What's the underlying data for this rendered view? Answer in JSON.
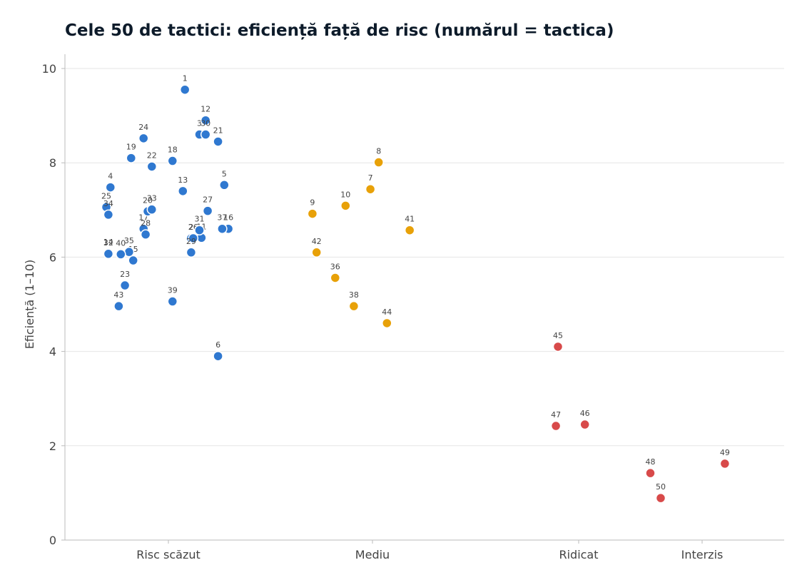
{
  "chart_data": {
    "type": "scatter",
    "title": "Cele 50 de tactici: eficiență față de risc (numărul = tactica)",
    "ylabel": "Eficiență (1–10)",
    "xlabel": "",
    "ylim": [
      0,
      10
    ],
    "yticks": [
      0,
      2,
      4,
      6,
      8,
      10
    ],
    "grid": "horizontal",
    "categories": [
      "Risc scăzut",
      "Mediu",
      "Ridicat",
      "Interzis"
    ],
    "colors": {
      "Risc scăzut": "#2f78d0",
      "Mediu": "#e8a108",
      "Ridicat": "#d84a4a",
      "Interzis": "#d84a4a"
    },
    "points": [
      {
        "id": "1",
        "category": "Risc scăzut",
        "offset": 0.08,
        "y": 9.55
      },
      {
        "id": "2",
        "category": "Risc scăzut",
        "offset": 0.11,
        "y": 6.4
      },
      {
        "id": "3",
        "category": "Risc scăzut",
        "offset": 0.15,
        "y": 8.6
      },
      {
        "id": "4",
        "category": "Risc scăzut",
        "offset": -0.28,
        "y": 7.48
      },
      {
        "id": "5",
        "category": "Risc scăzut",
        "offset": 0.27,
        "y": 7.53
      },
      {
        "id": "6",
        "category": "Risc scăzut",
        "offset": 0.24,
        "y": 3.9
      },
      {
        "id": "7",
        "category": "Mediu",
        "offset": -0.01,
        "y": 7.44
      },
      {
        "id": "8",
        "category": "Mediu",
        "offset": 0.03,
        "y": 8.01
      },
      {
        "id": "9",
        "category": "Mediu",
        "offset": -0.29,
        "y": 6.92
      },
      {
        "id": "10",
        "category": "Mediu",
        "offset": -0.13,
        "y": 7.09
      },
      {
        "id": "11",
        "category": "Risc scăzut",
        "offset": 0.16,
        "y": 6.41
      },
      {
        "id": "12",
        "category": "Risc scăzut",
        "offset": 0.18,
        "y": 8.9
      },
      {
        "id": "13",
        "category": "Risc scăzut",
        "offset": 0.07,
        "y": 7.4
      },
      {
        "id": "14",
        "category": "Risc scăzut",
        "offset": -0.29,
        "y": 6.08
      },
      {
        "id": "15",
        "category": "Risc scăzut",
        "offset": -0.17,
        "y": 5.93
      },
      {
        "id": "16",
        "category": "Risc scăzut",
        "offset": 0.29,
        "y": 6.6
      },
      {
        "id": "17",
        "category": "Risc scăzut",
        "offset": -0.12,
        "y": 6.6
      },
      {
        "id": "18",
        "category": "Risc scăzut",
        "offset": 0.02,
        "y": 8.04
      },
      {
        "id": "19",
        "category": "Risc scăzut",
        "offset": -0.18,
        "y": 8.1
      },
      {
        "id": "20",
        "category": "Risc scăzut",
        "offset": -0.1,
        "y": 6.97
      },
      {
        "id": "21",
        "category": "Risc scăzut",
        "offset": 0.24,
        "y": 8.45
      },
      {
        "id": "22",
        "category": "Risc scăzut",
        "offset": -0.08,
        "y": 7.92
      },
      {
        "id": "23",
        "category": "Risc scăzut",
        "offset": -0.21,
        "y": 5.4
      },
      {
        "id": "24",
        "category": "Risc scăzut",
        "offset": -0.12,
        "y": 8.52
      },
      {
        "id": "25",
        "category": "Risc scăzut",
        "offset": -0.3,
        "y": 7.06
      },
      {
        "id": "26",
        "category": "Risc scăzut",
        "offset": 0.12,
        "y": 6.4
      },
      {
        "id": "27",
        "category": "Risc scăzut",
        "offset": 0.19,
        "y": 6.98
      },
      {
        "id": "28",
        "category": "Risc scăzut",
        "offset": -0.11,
        "y": 6.48
      },
      {
        "id": "29",
        "category": "Risc scăzut",
        "offset": 0.11,
        "y": 6.1
      },
      {
        "id": "30",
        "category": "Risc scăzut",
        "offset": 0.18,
        "y": 8.6
      },
      {
        "id": "31",
        "category": "Risc scăzut",
        "offset": 0.15,
        "y": 6.57
      },
      {
        "id": "32",
        "category": "Risc scăzut",
        "offset": -0.29,
        "y": 6.07
      },
      {
        "id": "33",
        "category": "Risc scăzut",
        "offset": -0.08,
        "y": 7.01
      },
      {
        "id": "34",
        "category": "Risc scăzut",
        "offset": -0.29,
        "y": 6.9
      },
      {
        "id": "35",
        "category": "Risc scăzut",
        "offset": -0.19,
        "y": 6.11
      },
      {
        "id": "36",
        "category": "Mediu",
        "offset": -0.18,
        "y": 5.56
      },
      {
        "id": "37",
        "category": "Risc scăzut",
        "offset": 0.26,
        "y": 6.6
      },
      {
        "id": "38",
        "category": "Mediu",
        "offset": -0.09,
        "y": 4.96
      },
      {
        "id": "39",
        "category": "Risc scăzut",
        "offset": 0.02,
        "y": 5.06
      },
      {
        "id": "40",
        "category": "Risc scăzut",
        "offset": -0.23,
        "y": 6.06
      },
      {
        "id": "41",
        "category": "Mediu",
        "offset": 0.18,
        "y": 6.57
      },
      {
        "id": "42",
        "category": "Mediu",
        "offset": -0.27,
        "y": 6.1
      },
      {
        "id": "43",
        "category": "Risc scăzut",
        "offset": -0.24,
        "y": 4.96
      },
      {
        "id": "44",
        "category": "Mediu",
        "offset": 0.07,
        "y": 4.6
      },
      {
        "id": "45",
        "category": "Ridicat",
        "offset": -0.1,
        "y": 4.1
      },
      {
        "id": "46",
        "category": "Ridicat",
        "offset": 0.03,
        "y": 2.45
      },
      {
        "id": "47",
        "category": "Ridicat",
        "offset": -0.11,
        "y": 2.42
      },
      {
        "id": "48",
        "category": "Interzis",
        "offset": -0.25,
        "y": 1.42
      },
      {
        "id": "49",
        "category": "Interzis",
        "offset": 0.11,
        "y": 1.62
      },
      {
        "id": "50",
        "category": "Interzis",
        "offset": -0.2,
        "y": 0.89
      }
    ]
  }
}
